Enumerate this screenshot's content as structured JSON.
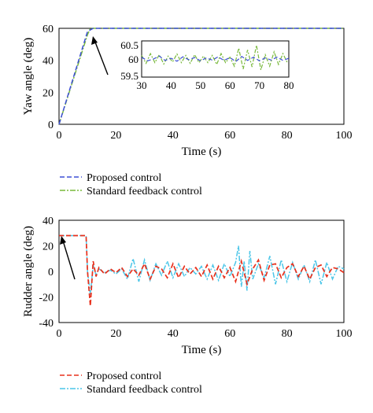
{
  "colors": {
    "proposed_top": "#3d4fd6",
    "standard_top": "#78b83a",
    "proposed_bottom": "#e8301c",
    "standard_bottom": "#4cc6e8"
  },
  "chart_data": [
    {
      "type": "line",
      "ylabel": "Yaw angle (deg)",
      "xlabel": "Time (s)",
      "xlim": [
        0,
        100
      ],
      "ylim": [
        0,
        60
      ],
      "xticks": [
        "0",
        "20",
        "40",
        "60",
        "80",
        "100"
      ],
      "yticks": [
        "0",
        "20",
        "40",
        "60"
      ],
      "legend_position": "below",
      "series": [
        {
          "name": "Proposed control",
          "x": [
            0,
            10,
            12,
            30,
            100
          ],
          "y": [
            0,
            58,
            60,
            60,
            60
          ]
        },
        {
          "name": "Standard feedback control",
          "x": [
            0,
            10,
            11,
            12,
            30,
            100
          ],
          "y": [
            0,
            56,
            60,
            60,
            60,
            60
          ]
        }
      ],
      "inset": {
        "xlim": [
          30,
          80
        ],
        "ylim": [
          59.5,
          60.5
        ],
        "xticks": [
          "30",
          "40",
          "50",
          "60",
          "70",
          "80"
        ],
        "yticks": [
          "59.5",
          "60",
          "60.5"
        ],
        "series": [
          {
            "name": "Proposed control",
            "x": [
              30,
              32,
              34,
              36,
              38,
              40,
              42,
              44,
              46,
              48,
              50,
              52,
              54,
              56,
              58,
              60,
              62,
              64,
              66,
              68,
              70,
              72,
              74,
              76,
              78,
              80
            ],
            "y": [
              60.05,
              59.95,
              60.0,
              60.08,
              59.96,
              60.02,
              59.94,
              60.06,
              59.98,
              60.04,
              59.95,
              60.03,
              59.97,
              60.06,
              59.96,
              60.04,
              59.93,
              60.07,
              59.96,
              60.05,
              59.95,
              60.03,
              59.97,
              60.05,
              59.96,
              60.02
            ]
          },
          {
            "name": "Standard feedback control",
            "x": [
              30,
              31.5,
              33,
              34.5,
              36,
              37.5,
              39,
              40.5,
              42,
              43.5,
              45,
              46.5,
              48,
              49.5,
              51,
              52.5,
              54,
              55.5,
              57,
              58.5,
              60,
              61.5,
              63,
              64.5,
              66,
              67.5,
              69,
              70.5,
              72,
              73.5,
              75,
              76.5,
              78,
              79.5
            ],
            "y": [
              60.1,
              59.88,
              60.15,
              59.9,
              60.12,
              59.86,
              60.08,
              59.92,
              60.14,
              59.9,
              60.1,
              59.88,
              60.12,
              59.9,
              60.08,
              59.9,
              60.1,
              59.85,
              60.15,
              59.9,
              60.05,
              59.8,
              60.3,
              59.72,
              60.25,
              59.78,
              60.38,
              59.7,
              60.12,
              59.8,
              60.2,
              59.85,
              60.15,
              59.9
            ]
          }
        ]
      }
    },
    {
      "type": "line",
      "ylabel": "Rudder angle (deg)",
      "xlabel": "Time (s)",
      "xlim": [
        0,
        100
      ],
      "ylim": [
        -40,
        40
      ],
      "xticks": [
        "0",
        "20",
        "40",
        "60",
        "80",
        "100"
      ],
      "yticks": [
        "-40",
        "-20",
        "0",
        "20",
        "40"
      ],
      "legend_position": "below",
      "series": [
        {
          "name": "Proposed control",
          "x": [
            0,
            1,
            9.5,
            10,
            11,
            12,
            13,
            14,
            16,
            18,
            20,
            22,
            24,
            26,
            28,
            30,
            32,
            34,
            36,
            38,
            40,
            42,
            44,
            46,
            48,
            50,
            52,
            54,
            56,
            58,
            60,
            62,
            64,
            66,
            68,
            70,
            72,
            74,
            76,
            78,
            80,
            82,
            84,
            86,
            88,
            90,
            92,
            94,
            96,
            98,
            100
          ],
          "y": [
            28,
            28,
            28,
            0,
            -27,
            8,
            -4,
            3,
            -2,
            2,
            -1,
            3,
            -4,
            2,
            -3,
            6,
            -6,
            4,
            2,
            -5,
            6,
            -5,
            4,
            -2,
            3,
            -4,
            5,
            -6,
            4,
            -5,
            3,
            -8,
            8,
            -10,
            2,
            9,
            -7,
            5,
            6,
            -5,
            3,
            6,
            -4,
            4,
            -6,
            3,
            5,
            -4,
            3,
            2,
            -1
          ]
        },
        {
          "name": "Standard feedback control",
          "x": [
            0,
            1,
            9.5,
            10,
            11,
            12,
            13,
            14,
            16,
            18,
            20,
            22,
            24,
            26,
            28,
            30,
            32,
            34,
            36,
            38,
            40,
            42,
            44,
            46,
            48,
            50,
            52,
            54,
            56,
            58,
            60,
            62,
            63,
            64,
            65,
            66,
            67,
            68,
            70,
            72,
            74,
            76,
            78,
            80,
            82,
            84,
            86,
            88,
            90,
            92,
            94,
            96,
            98,
            100
          ],
          "y": [
            28,
            28,
            28,
            0,
            -18,
            5,
            -3,
            2,
            -1,
            1,
            -2,
            2,
            -6,
            10,
            -8,
            9,
            -7,
            6,
            -3,
            8,
            -5,
            6,
            -4,
            3,
            -2,
            4,
            -6,
            5,
            -7,
            6,
            -4,
            7,
            20,
            -12,
            8,
            -15,
            16,
            -6,
            6,
            -5,
            12,
            -10,
            9,
            -8,
            7,
            -6,
            5,
            -8,
            9,
            -10,
            7,
            -6,
            4,
            2
          ]
        }
      ]
    }
  ]
}
